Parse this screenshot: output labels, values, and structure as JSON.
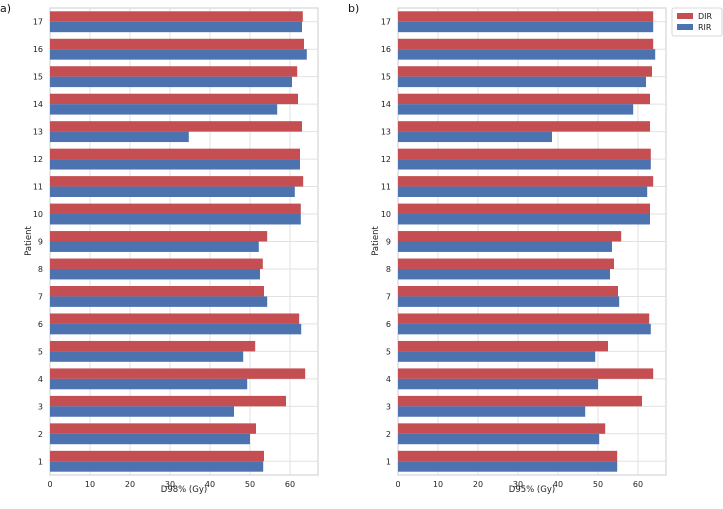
{
  "colors": {
    "dir": "#c44e52",
    "rir": "#4c72b0",
    "grid": "#e2e2e2",
    "frame": "#cccccc",
    "plot_bg": "#ffffff"
  },
  "chart_data": [
    {
      "panel_label": "a)",
      "type": "bar",
      "orientation": "horizontal",
      "ylabel": "Patient",
      "xlabel": "D98% (Gy)",
      "xlim": [
        0,
        67
      ],
      "xticks": [
        "0",
        "10",
        "20",
        "30",
        "40",
        "50",
        "60"
      ],
      "grid": true,
      "legend": false,
      "categories": [
        "1",
        "2",
        "3",
        "4",
        "5",
        "6",
        "7",
        "8",
        "9",
        "10",
        "11",
        "12",
        "13",
        "14",
        "15",
        "16",
        "17"
      ],
      "series": [
        {
          "name": "DIR",
          "values": [
            53.5,
            51.5,
            59.0,
            63.8,
            51.3,
            62.3,
            53.5,
            53.2,
            54.3,
            62.7,
            63.3,
            62.5,
            63.0,
            62.0,
            61.8,
            63.5,
            63.2
          ]
        },
        {
          "name": "RIR",
          "values": [
            53.3,
            50.0,
            46.0,
            49.3,
            48.3,
            62.8,
            54.3,
            52.5,
            52.2,
            62.7,
            61.2,
            62.5,
            34.7,
            56.8,
            60.5,
            64.2,
            63.0
          ]
        }
      ]
    },
    {
      "panel_label": "b)",
      "type": "bar",
      "orientation": "horizontal",
      "ylabel": "Patient",
      "xlabel": "D95% (Gy)",
      "xlim": [
        0,
        67
      ],
      "xticks": [
        "0",
        "10",
        "20",
        "30",
        "40",
        "50",
        "60"
      ],
      "grid": true,
      "legend": true,
      "legend_position": "upper right outside",
      "categories": [
        "1",
        "2",
        "3",
        "4",
        "5",
        "6",
        "7",
        "8",
        "9",
        "10",
        "11",
        "12",
        "13",
        "14",
        "15",
        "16",
        "17"
      ],
      "series": [
        {
          "name": "DIR",
          "values": [
            54.8,
            51.8,
            61.0,
            63.8,
            52.5,
            62.8,
            55.0,
            54.0,
            55.8,
            63.0,
            63.8,
            63.2,
            63.0,
            63.0,
            63.5,
            63.8,
            63.8
          ]
        },
        {
          "name": "RIR",
          "values": [
            54.8,
            50.3,
            46.8,
            50.0,
            49.3,
            63.2,
            55.3,
            53.0,
            53.5,
            63.0,
            62.3,
            63.2,
            38.5,
            58.8,
            62.0,
            64.3,
            63.8
          ]
        }
      ]
    }
  ]
}
